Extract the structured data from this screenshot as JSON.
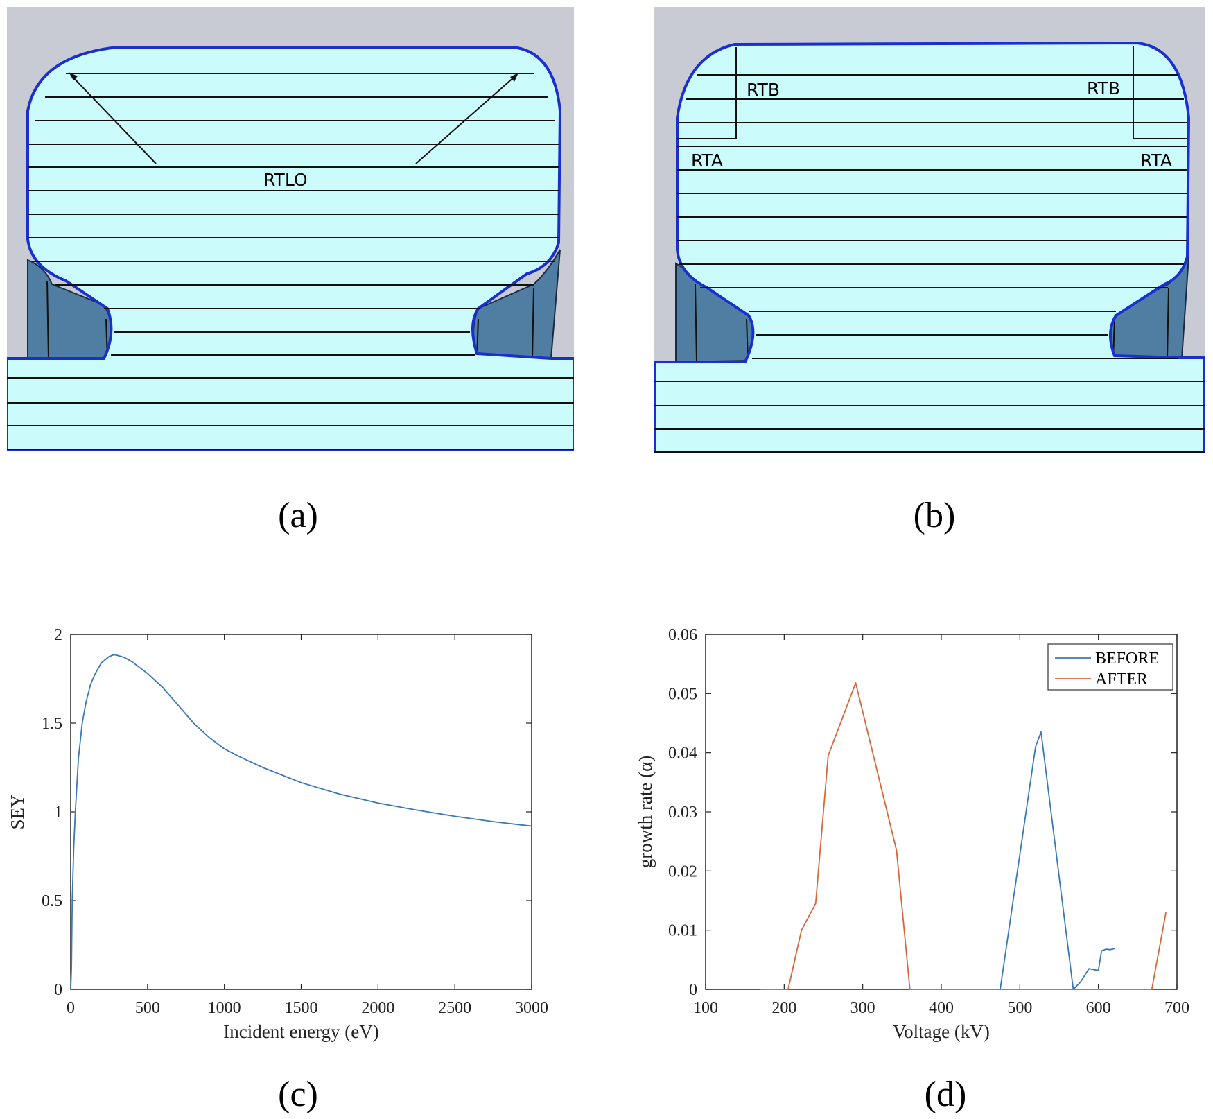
{
  "panels": {
    "a": {
      "caption": "(a)",
      "labels": [
        "RTLO"
      ]
    },
    "b": {
      "caption": "(b)",
      "labels": [
        "RTB",
        "RTB",
        "RTA",
        "RTA"
      ]
    },
    "c": {
      "caption": "(c)"
    },
    "d": {
      "caption": "(d)"
    }
  },
  "colors": {
    "cad_background": "#c9cbd4",
    "cad_fill": "#ccfbfb",
    "cad_outline": "#1a2fd0",
    "cad_body": "#4f7ea2",
    "series_blue": "#3a78b8",
    "series_orange": "#d9663a"
  },
  "chart_data": [
    {
      "type": "line",
      "panel": "c",
      "title": "",
      "xlabel": "Incident energy (eV)",
      "ylabel": "SEY",
      "xlim": [
        0,
        3000
      ],
      "ylim": [
        0,
        2
      ],
      "xticks": [
        0,
        500,
        1000,
        1500,
        2000,
        2500,
        3000
      ],
      "yticks": [
        0,
        0.5,
        1,
        1.5,
        2
      ],
      "ytick_labels": [
        "0",
        "0.5",
        "1",
        "1.5",
        "2"
      ],
      "grid": false,
      "series": [
        {
          "color": "#3a78b8",
          "x": [
            0,
            5,
            10,
            20,
            30,
            50,
            75,
            100,
            130,
            160,
            200,
            250,
            280,
            300,
            350,
            400,
            500,
            600,
            700,
            800,
            900,
            1000,
            1100,
            1250,
            1500,
            1750,
            2000,
            2250,
            2500,
            2750,
            3000
          ],
          "y": [
            0.0,
            0.12,
            0.5,
            0.8,
            1.0,
            1.3,
            1.5,
            1.62,
            1.72,
            1.78,
            1.84,
            1.875,
            1.885,
            1.883,
            1.87,
            1.845,
            1.78,
            1.7,
            1.6,
            1.5,
            1.42,
            1.355,
            1.31,
            1.25,
            1.165,
            1.1,
            1.05,
            1.01,
            0.975,
            0.945,
            0.92
          ]
        }
      ]
    },
    {
      "type": "line",
      "panel": "d",
      "title": "",
      "xlabel": "Voltage (kV)",
      "ylabel": "growth rate (α)",
      "xlim": [
        100,
        700
      ],
      "ylim": [
        0,
        0.06
      ],
      "xticks": [
        100,
        200,
        300,
        400,
        500,
        600,
        700
      ],
      "yticks": [
        0,
        0.01,
        0.02,
        0.03,
        0.04,
        0.05,
        0.06
      ],
      "ytick_labels": [
        "0",
        "0.01",
        "0.02",
        "0.03",
        "0.04",
        "0.05",
        "0.06"
      ],
      "grid": false,
      "legend": {
        "position": "top-right",
        "entries": [
          "BEFORE",
          "AFTER"
        ]
      },
      "series": [
        {
          "name": "BEFORE",
          "color": "#3a78b8",
          "x": [
            475,
            520,
            527,
            568,
            577,
            588,
            595,
            600,
            604,
            610,
            615,
            621
          ],
          "y": [
            0,
            0.041,
            0.0435,
            0,
            0.0012,
            0.0035,
            0.0033,
            0.0032,
            0.0065,
            0.0068,
            0.0067,
            0.0069
          ]
        },
        {
          "name": "AFTER",
          "color": "#d9663a",
          "x": [
            170,
            205,
            222,
            240,
            256,
            291,
            343,
            360,
            430,
            540,
            668,
            686
          ],
          "y": [
            0,
            0,
            0.01,
            0.0145,
            0.0395,
            0.0518,
            0.0235,
            0,
            0,
            0,
            0,
            0.013
          ]
        }
      ]
    }
  ]
}
